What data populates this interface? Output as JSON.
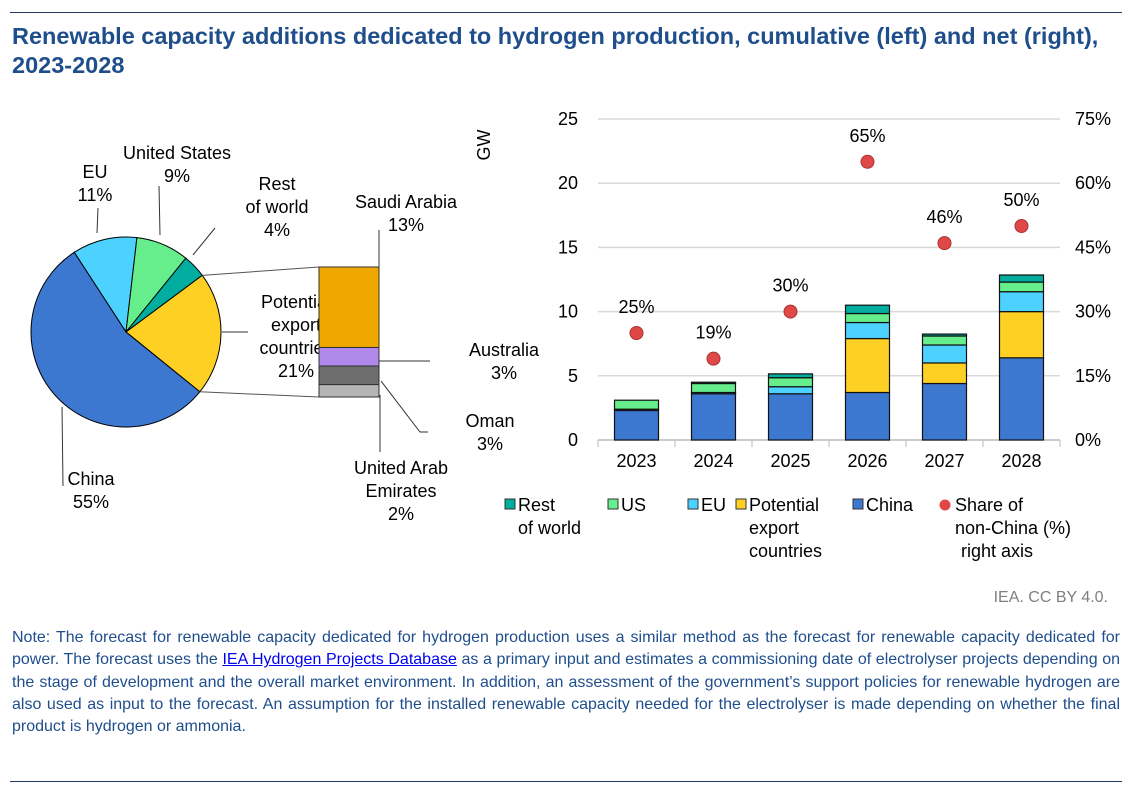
{
  "title": "Renewable capacity additions dedicated to hydrogen production, cumulative (left) and net (right), 2023-2028",
  "credit": "IEA. CC BY 4.0.",
  "note": {
    "before": "Note: The forecast for renewable capacity dedicated for hydrogen production uses a similar method as the forecast for renewable capacity dedicated for power. The forecast uses the ",
    "link": "IEA Hydrogen Projects Database",
    "after": " as a primary input and estimates a commissioning date of electrolyser projects depending on the stage of development and the overall market environment. In addition, an assessment of the government’s support policies for renewable hydrogen are also used as input to the forecast. An assumption for the installed renewable capacity needed for the electrolyser is made depending on whether the final product is hydrogen or ammonia."
  },
  "chart_data": [
    {
      "type": "pie",
      "slices": [
        {
          "label": "EU",
          "value": 11,
          "display": "11%",
          "color": "#4dd2ff"
        },
        {
          "label": "United States",
          "value": 9,
          "display": "9%",
          "color": "#66ee8c"
        },
        {
          "label": "Rest of world",
          "value": 4,
          "display": "4%",
          "color": "#00ad9f"
        },
        {
          "label": "Potential export countries",
          "value": 21,
          "display": "21%",
          "color": "#fdd023"
        },
        {
          "label": "China",
          "value": 55,
          "display": "55%",
          "color": "#3c78d0"
        }
      ],
      "breakdown": [
        {
          "label": "Saudi Arabia",
          "value": 13,
          "display": "13%",
          "color": "#f0a800"
        },
        {
          "label": "Australia",
          "value": 3,
          "display": "3%",
          "color": "#b088ea"
        },
        {
          "label": "Oman",
          "value": 3,
          "display": "3%",
          "color": "#6e6e6e"
        },
        {
          "label": "United Arab Emirates",
          "value": 2,
          "display": "2%",
          "color": "#b4b4b4"
        }
      ]
    },
    {
      "type": "bar",
      "stacked": true,
      "categories": [
        "2023",
        "2024",
        "2025",
        "2026",
        "2027",
        "2028"
      ],
      "ylabel": "GW",
      "ylim": [
        0,
        25
      ],
      "yticks": [
        "0",
        "5",
        "10",
        "15",
        "20",
        "25"
      ],
      "y2lim": [
        0,
        75
      ],
      "y2ticks": [
        "0%",
        "15%",
        "30%",
        "45%",
        "60%",
        "75%"
      ],
      "grid": true,
      "legend_position": "bottom",
      "series": [
        {
          "name": "China",
          "legend": "China",
          "color": "#3c78d0",
          "values": [
            2.3,
            3.6,
            3.6,
            3.7,
            4.4,
            6.4
          ]
        },
        {
          "name": "Potential export countries",
          "legend": "Potential export countries",
          "color": "#fdd023",
          "values": [
            0.1,
            0,
            0,
            4.2,
            1.6,
            3.6
          ]
        },
        {
          "name": "EU",
          "legend": "EU",
          "color": "#4dd2ff",
          "values": [
            0,
            0.1,
            0.55,
            1.25,
            1.4,
            1.55
          ]
        },
        {
          "name": "US",
          "legend": "US",
          "color": "#66ee8c",
          "values": [
            0.7,
            0.7,
            0.7,
            0.7,
            0.7,
            0.75
          ]
        },
        {
          "name": "Rest of world",
          "legend": "Rest of world",
          "color": "#00ad9f",
          "values": [
            0,
            0.1,
            0.3,
            0.65,
            0.15,
            0.55
          ]
        }
      ],
      "scatter": {
        "name": "Share of non-China (%) right axis",
        "color": "#e04848",
        "values": [
          25,
          19,
          30,
          65,
          46,
          50
        ],
        "labels": [
          "25%",
          "19%",
          "30%",
          "65%",
          "46%",
          "50%"
        ]
      }
    }
  ]
}
